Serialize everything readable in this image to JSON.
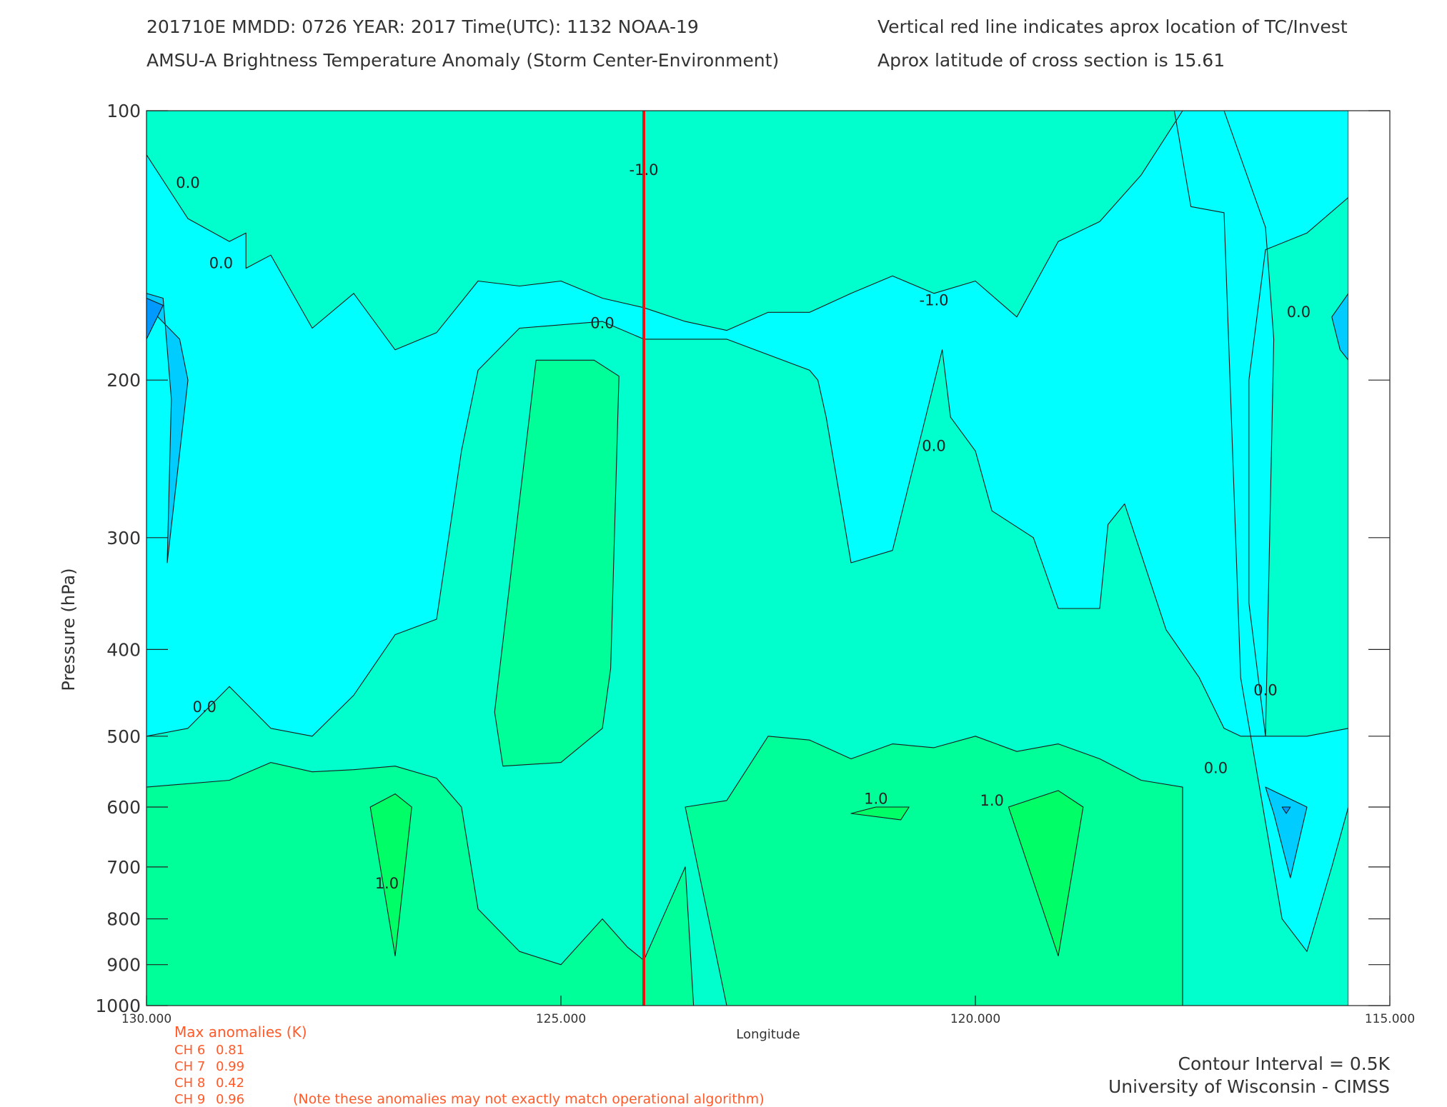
{
  "header": {
    "line1_left": "201710E  MMDD: 0726 YEAR: 2017 Time(UTC): 1132 NOAA-19",
    "line2_left": "AMSU-A Brightness Temperature Anomaly (Storm Center-Environment)",
    "line1_right": "Vertical red line indicates aprox location of TC/Invest",
    "line2_right": "Aprox latitude of cross section is 15.61"
  },
  "chart_data": {
    "type": "contour",
    "title": "AMSU-A Brightness Temperature Anomaly (Storm Center-Environment)",
    "xlabel": "Longitude",
    "ylabel": "Pressure (hPa)",
    "x_reversed": true,
    "xlim": [
      130.0,
      115.0
    ],
    "ylim": [
      1000,
      100
    ],
    "y_scale": "log",
    "x_ticks": [
      {
        "value": 130,
        "label": "130.000"
      },
      {
        "value": 125,
        "label": "125.000"
      },
      {
        "value": 120,
        "label": "120.000"
      },
      {
        "value": 115,
        "label": "115.000"
      }
    ],
    "y_ticks": [
      {
        "value": 100,
        "label": "100"
      },
      {
        "value": 200,
        "label": "200"
      },
      {
        "value": 300,
        "label": "300"
      },
      {
        "value": 400,
        "label": "400"
      },
      {
        "value": 500,
        "label": "500"
      },
      {
        "value": 600,
        "label": "600"
      },
      {
        "value": 700,
        "label": "700"
      },
      {
        "value": 800,
        "label": "800"
      },
      {
        "value": 900,
        "label": "900"
      },
      {
        "value": 1000,
        "label": "1000"
      }
    ],
    "data_extent_lon": [
      130.0,
      115.5
    ],
    "storm_center_longitude": 124.0,
    "contour_interval_K": 0.5,
    "level_colors": {
      "-1.5": "#0022ee",
      "-1.0": "#0099ff",
      "-0.5": "#00ccff",
      "0.0": "#00ffff",
      "0.5": "#00ffcc",
      "1.0": "#00ff99",
      "1.5": "#00ff66"
    },
    "regions": [
      {
        "level": 0.5,
        "points": [
          [
            130.0,
            100
          ],
          [
            129.5,
            100
          ],
          [
            128.5,
            100
          ],
          [
            127.0,
            100
          ],
          [
            126.0,
            100
          ],
          [
            125.0,
            100
          ],
          [
            124.5,
            100
          ],
          [
            124.0,
            100
          ],
          [
            122.0,
            100
          ],
          [
            121.0,
            100
          ],
          [
            119.0,
            100
          ],
          [
            117.0,
            100
          ],
          [
            116.0,
            100
          ],
          [
            115.5,
            100
          ],
          [
            115.5,
            1000
          ],
          [
            130.0,
            1000
          ]
        ]
      },
      {
        "level": 0.0,
        "points": [
          [
            130.0,
            112
          ],
          [
            129.5,
            132
          ],
          [
            129.0,
            140
          ],
          [
            128.8,
            137
          ],
          [
            128.8,
            150
          ],
          [
            128.5,
            145
          ],
          [
            128.0,
            175
          ],
          [
            127.5,
            160
          ],
          [
            127.0,
            185
          ],
          [
            126.5,
            177
          ],
          [
            126.0,
            155
          ],
          [
            125.5,
            157
          ],
          [
            125.0,
            155
          ],
          [
            124.5,
            162
          ],
          [
            124.0,
            166
          ],
          [
            123.5,
            172
          ],
          [
            123.0,
            176
          ],
          [
            122.5,
            168
          ],
          [
            122.0,
            168
          ],
          [
            121.5,
            160
          ],
          [
            121.0,
            153
          ],
          [
            120.5,
            160
          ],
          [
            120.0,
            155
          ],
          [
            119.5,
            170
          ],
          [
            119.0,
            140
          ],
          [
            118.5,
            133
          ],
          [
            118.0,
            118
          ],
          [
            117.5,
            100
          ],
          [
            116.5,
            100
          ],
          [
            116.0,
            100
          ],
          [
            115.5,
            100
          ],
          [
            115.5,
            125
          ],
          [
            116.0,
            137
          ],
          [
            116.5,
            143
          ],
          [
            116.7,
            200
          ],
          [
            116.7,
            355
          ],
          [
            116.5,
            500
          ],
          [
            116.0,
            500
          ],
          [
            115.5,
            490
          ],
          [
            115.5,
            600
          ],
          [
            115.7,
            700
          ],
          [
            116.0,
            870
          ],
          [
            116.3,
            800
          ],
          [
            116.8,
            430
          ],
          [
            117.0,
            130
          ],
          [
            117.4,
            128
          ],
          [
            117.6,
            100
          ],
          [
            117.0,
            100
          ],
          [
            116.5,
            135
          ],
          [
            116.4,
            180
          ],
          [
            116.5,
            500
          ],
          [
            116.8,
            500
          ],
          [
            117.0,
            490
          ],
          [
            117.3,
            430
          ],
          [
            117.7,
            380
          ],
          [
            118.2,
            275
          ],
          [
            118.4,
            290
          ],
          [
            118.5,
            360
          ],
          [
            119.0,
            360
          ],
          [
            119.3,
            300
          ],
          [
            119.8,
            280
          ],
          [
            120.0,
            240
          ],
          [
            120.3,
            220
          ],
          [
            120.4,
            185
          ],
          [
            120.6,
            220
          ],
          [
            121.0,
            310
          ],
          [
            121.5,
            320
          ],
          [
            121.8,
            220
          ],
          [
            121.9,
            200
          ],
          [
            122.0,
            195
          ],
          [
            123.0,
            180
          ],
          [
            123.5,
            180
          ],
          [
            124.0,
            180
          ],
          [
            124.5,
            172
          ],
          [
            125.5,
            175
          ],
          [
            126.0,
            195
          ],
          [
            126.2,
            240
          ],
          [
            126.5,
            370
          ],
          [
            127.0,
            385
          ],
          [
            127.5,
            450
          ],
          [
            128.0,
            500
          ],
          [
            128.5,
            490
          ],
          [
            129.0,
            440
          ],
          [
            129.5,
            490
          ],
          [
            130.0,
            500
          ]
        ]
      },
      {
        "level": -0.5,
        "points": [
          [
            130.0,
            160
          ],
          [
            129.8,
            162
          ],
          [
            129.7,
            210
          ],
          [
            129.75,
            320
          ],
          [
            129.5,
            200
          ],
          [
            129.6,
            180
          ],
          [
            130.0,
            165
          ]
        ]
      },
      {
        "level": -0.5,
        "points": [
          [
            115.5,
            160
          ],
          [
            115.7,
            170
          ],
          [
            115.6,
            185
          ],
          [
            115.5,
            190
          ]
        ]
      },
      {
        "level": -0.5,
        "points": [
          [
            116.0,
            600
          ],
          [
            116.5,
            570
          ],
          [
            116.4,
            610
          ],
          [
            116.2,
            720
          ],
          [
            116.0,
            600
          ]
        ]
      },
      {
        "level": -1.0,
        "points": [
          [
            130.0,
            162
          ],
          [
            129.8,
            165
          ],
          [
            130.0,
            180
          ]
        ]
      },
      {
        "level": -1.0,
        "points": [
          [
            116.3,
            600
          ],
          [
            116.25,
            610
          ],
          [
            116.2,
            600
          ]
        ]
      },
      {
        "level": 1.0,
        "points": [
          [
            130.0,
            570
          ],
          [
            129.0,
            560
          ],
          [
            128.5,
            535
          ],
          [
            128.0,
            548
          ],
          [
            127.5,
            545
          ],
          [
            127.0,
            540
          ],
          [
            126.5,
            557
          ],
          [
            126.2,
            600
          ],
          [
            126.0,
            780
          ],
          [
            125.5,
            870
          ],
          [
            125.0,
            900
          ],
          [
            124.5,
            800
          ],
          [
            124.2,
            860
          ],
          [
            124.0,
            890
          ],
          [
            123.5,
            700
          ],
          [
            123.4,
            1000
          ],
          [
            130.0,
            1000
          ]
        ]
      },
      {
        "level": 1.0,
        "points": [
          [
            125.3,
            190
          ],
          [
            124.6,
            190
          ],
          [
            124.3,
            198
          ],
          [
            124.4,
            420
          ],
          [
            124.5,
            490
          ],
          [
            125.0,
            535
          ],
          [
            125.7,
            540
          ],
          [
            125.8,
            470
          ],
          [
            125.3,
            190
          ]
        ]
      },
      {
        "level": 1.0,
        "points": [
          [
            123.5,
            600
          ],
          [
            123.0,
            590
          ],
          [
            122.5,
            500
          ],
          [
            122.0,
            505
          ],
          [
            121.5,
            530
          ],
          [
            121.0,
            510
          ],
          [
            120.5,
            515
          ],
          [
            120.0,
            500
          ],
          [
            119.5,
            520
          ],
          [
            119.0,
            510
          ],
          [
            118.5,
            530
          ],
          [
            118.0,
            560
          ],
          [
            117.5,
            570
          ],
          [
            117.5,
            1000
          ],
          [
            123.0,
            1000
          ]
        ]
      },
      {
        "level": 1.5,
        "points": [
          [
            127.3,
            600
          ],
          [
            127.0,
            580
          ],
          [
            126.8,
            600
          ],
          [
            127.0,
            880
          ],
          [
            127.3,
            600
          ]
        ]
      },
      {
        "level": 1.5,
        "points": [
          [
            121.2,
            600
          ],
          [
            120.8,
            600
          ],
          [
            120.9,
            620
          ],
          [
            121.5,
            610
          ],
          [
            121.2,
            600
          ]
        ]
      },
      {
        "level": 1.5,
        "points": [
          [
            119.6,
            600
          ],
          [
            119.0,
            575
          ],
          [
            118.7,
            600
          ],
          [
            119.0,
            880
          ],
          [
            119.6,
            600
          ]
        ]
      }
    ],
    "contour_labels": [
      {
        "text": "0.0",
        "lon": 129.5,
        "p": 122
      },
      {
        "text": "0.0",
        "lon": 129.1,
        "p": 150
      },
      {
        "text": "0.0",
        "lon": 124.5,
        "p": 175
      },
      {
        "text": "-1.0",
        "lon": 124.0,
        "p": 118
      },
      {
        "text": "-1.0",
        "lon": 120.5,
        "p": 165
      },
      {
        "text": "0.0",
        "lon": 120.5,
        "p": 240
      },
      {
        "text": "0.0",
        "lon": 116.1,
        "p": 170
      },
      {
        "text": "0.0",
        "lon": 129.3,
        "p": 470
      },
      {
        "text": "0.0",
        "lon": 116.5,
        "p": 450
      },
      {
        "text": "0.0",
        "lon": 117.1,
        "p": 550
      },
      {
        "text": "1.0",
        "lon": 121.2,
        "p": 595
      },
      {
        "text": "1.0",
        "lon": 119.8,
        "p": 598
      },
      {
        "text": "1.0",
        "lon": 127.1,
        "p": 740
      }
    ]
  },
  "stats": {
    "heading": "Max anomalies (K)",
    "rows": [
      {
        "label": "CH 6",
        "value": "0.81"
      },
      {
        "label": "CH 7",
        "value": "0.99"
      },
      {
        "label": "CH 8",
        "value": "0.42"
      },
      {
        "label": "CH 9",
        "value": "0.96"
      }
    ],
    "note": "(Note these anomalies may not exactly match operational algorithm)",
    "color": "#ff5a2a"
  },
  "footer": {
    "contour_interval": "Contour Interval = 0.5K",
    "credit": "University of Wisconsin - CIMSS"
  },
  "colors": {
    "marker_line": "#ee1111",
    "contour_stroke": "#1a1a1a"
  }
}
